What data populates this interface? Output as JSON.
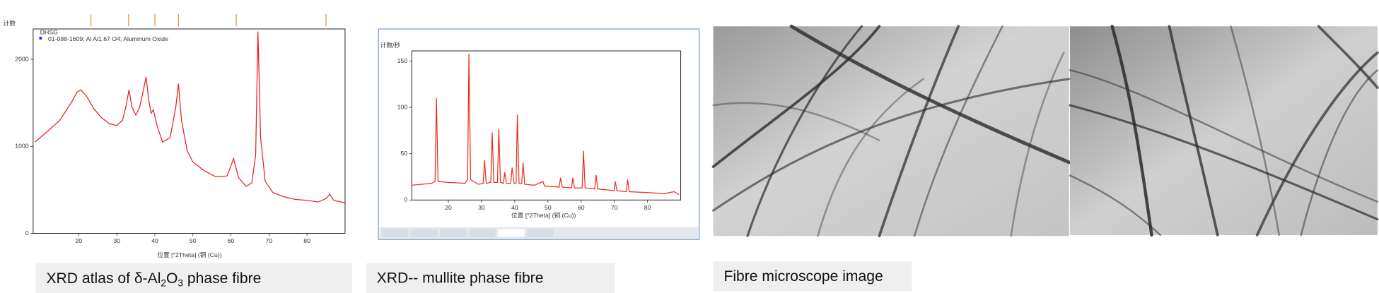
{
  "chart_data": [
    {
      "type": "line",
      "y_label": "计数",
      "x_label": "位置 [°2Theta] (铜 (Cu))",
      "reference_name": "01-088-1609; Al Al1.67 O4; Aluminum Oxide",
      "reference_peaks": [
        23.2,
        33.1,
        40,
        46.2,
        61.4,
        85
      ],
      "xlim": [
        8,
        90
      ],
      "ylim": [
        0,
        2350
      ],
      "xticks": [
        20,
        30,
        40,
        50,
        60,
        70,
        80
      ],
      "yticks": [
        0,
        1000,
        2000
      ],
      "x": [
        8.5,
        12,
        15,
        18,
        19.5,
        20.5,
        22,
        24,
        26,
        28,
        30,
        31.5,
        32.5,
        33.2,
        34,
        35,
        36,
        37,
        37.7,
        38.3,
        39,
        39.6,
        40.5,
        42,
        44,
        45.5,
        46.2,
        47,
        48.5,
        50,
        53,
        56,
        59,
        60.7,
        62,
        64,
        65.5,
        66.5,
        67.1,
        67.8,
        69,
        71,
        74,
        77,
        80,
        83,
        85,
        86,
        87,
        90
      ],
      "series": [
        {
          "name": "DHSG",
          "color": "#e8201c",
          "values": [
            1050,
            1180,
            1300,
            1500,
            1620,
            1650,
            1580,
            1430,
            1330,
            1260,
            1240,
            1300,
            1480,
            1650,
            1450,
            1360,
            1450,
            1650,
            1800,
            1560,
            1380,
            1420,
            1250,
            1050,
            1100,
            1450,
            1720,
            1300,
            950,
            820,
            720,
            650,
            660,
            860,
            640,
            540,
            580,
            900,
            2320,
            1100,
            600,
            470,
            420,
            390,
            380,
            360,
            400,
            450,
            380,
            350
          ]
        }
      ]
    },
    {
      "type": "line",
      "y_label": "计数/秒",
      "x_label": "位置 [°2Theta] (铜 (Cu))",
      "xlim": [
        9,
        90
      ],
      "ylim": [
        0,
        161
      ],
      "xticks": [
        20,
        30,
        40,
        50,
        60,
        70,
        80
      ],
      "yticks": [
        0,
        50,
        100,
        150
      ],
      "x": [
        9,
        12,
        15,
        16,
        16.4,
        16.9,
        20,
        25,
        25.8,
        26.2,
        26.7,
        29,
        30.5,
        30.9,
        31.4,
        32.8,
        33.2,
        33.7,
        34.8,
        35.2,
        35.7,
        36.6,
        37,
        37.5,
        38.8,
        39.2,
        39.8,
        40.4,
        40.8,
        41.3,
        42.1,
        42.5,
        43,
        46,
        48.5,
        49,
        53.4,
        53.8,
        54.3,
        57.1,
        57.5,
        58,
        60.3,
        60.7,
        61.2,
        64.1,
        64.5,
        65,
        70,
        70.3,
        70.8,
        73.6,
        74,
        74.5,
        80,
        85,
        88,
        89.5
      ],
      "series": [
        {
          "color": "#e8301c",
          "values": [
            16,
            17,
            18,
            20,
            110,
            20,
            19,
            18,
            22,
            158,
            22,
            17,
            18,
            43,
            18,
            19,
            73,
            19,
            19,
            77,
            19,
            18,
            30,
            18,
            18,
            35,
            18,
            18,
            92,
            18,
            18,
            40,
            17,
            16,
            20,
            15,
            14,
            24,
            14,
            13,
            24,
            13,
            13,
            53,
            13,
            12,
            27,
            12,
            10,
            20,
            10,
            9,
            22,
            9,
            8,
            7,
            9,
            6
          ]
        }
      ]
    }
  ],
  "captions": [
    [
      "XRD atlas of δ-Al",
      "2",
      "O",
      "3",
      " phase fibre"
    ],
    [
      "XRD-- mullite phase fibre"
    ],
    [
      "Fibre microscope image"
    ]
  ]
}
